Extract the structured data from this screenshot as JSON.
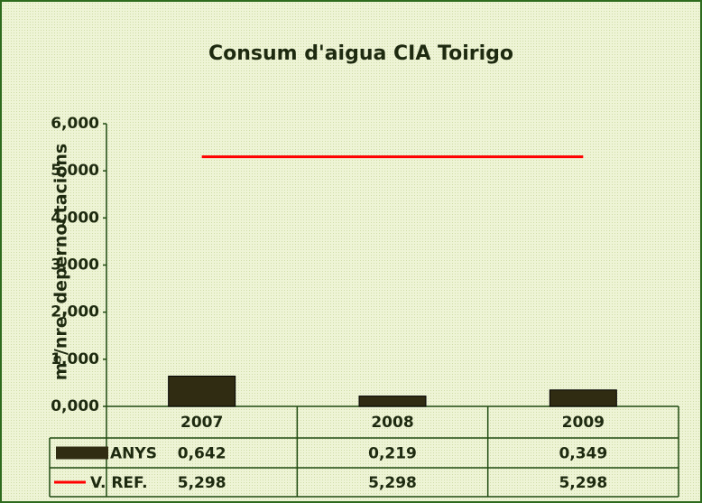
{
  "chart_data": {
    "type": "bar",
    "title": "Consum d'aigua CIA Toirigo",
    "y_label": "m³/nre. depernoctacions",
    "categories": [
      "2007",
      "2008",
      "2009"
    ],
    "series": [
      {
        "name": "ANYS",
        "type": "bar",
        "color": "#302c12",
        "values": [
          0.642,
          0.219,
          0.349
        ],
        "value_labels": [
          "0,642",
          "0,219",
          "0,349"
        ]
      },
      {
        "name": "V. REF.",
        "type": "line",
        "color": "#ff0000",
        "values": [
          5.298,
          5.298,
          5.298
        ],
        "value_labels": [
          "5,298",
          "5,298",
          "5,298"
        ]
      }
    ],
    "ylim": [
      0,
      6
    ],
    "yticks": [
      {
        "value": 0,
        "label": "0,000"
      },
      {
        "value": 1,
        "label": "1,000"
      },
      {
        "value": 2,
        "label": "2,000"
      },
      {
        "value": 3,
        "label": "3,000"
      },
      {
        "value": 4,
        "label": "4,000"
      },
      {
        "value": 5,
        "label": "5,000"
      },
      {
        "value": 6,
        "label": "6,000"
      }
    ],
    "grid": false
  }
}
